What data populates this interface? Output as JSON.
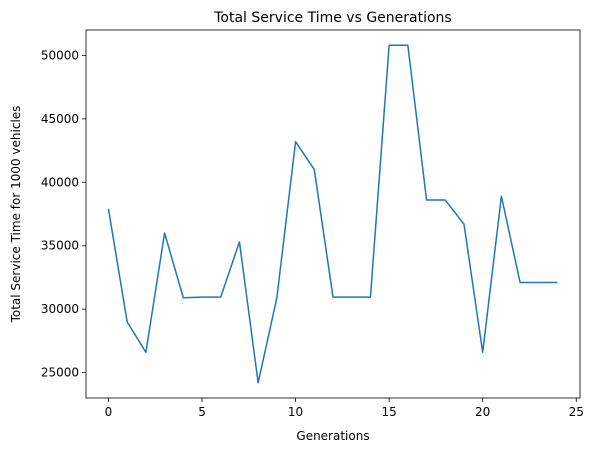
{
  "chart_data": {
    "type": "line",
    "title": "Total Service Time vs Generations",
    "xlabel": "Generations",
    "ylabel": "Total Service Time for 1000 vehicles",
    "xlim": [
      -1.2,
      25.2
    ],
    "ylim": [
      23000,
      52000
    ],
    "x_ticks": [
      0,
      5,
      10,
      15,
      20,
      25
    ],
    "y_ticks": [
      25000,
      30000,
      35000,
      40000,
      45000,
      50000
    ],
    "grid": false,
    "color": "#1f77b4",
    "series": [
      {
        "x": [
          0,
          1,
          2,
          3,
          4,
          5,
          6,
          7,
          8,
          9,
          10,
          11,
          12,
          13,
          14,
          15,
          16,
          17,
          18,
          19,
          20,
          21,
          22,
          23,
          24
        ],
        "values": [
          37900,
          29000,
          26600,
          36000,
          30900,
          30950,
          30950,
          35300,
          24200,
          30900,
          43200,
          41000,
          30950,
          30950,
          30950,
          50800,
          50800,
          38600,
          38600,
          36700,
          26600,
          38900,
          32100,
          32100,
          32100
        ]
      }
    ]
  }
}
